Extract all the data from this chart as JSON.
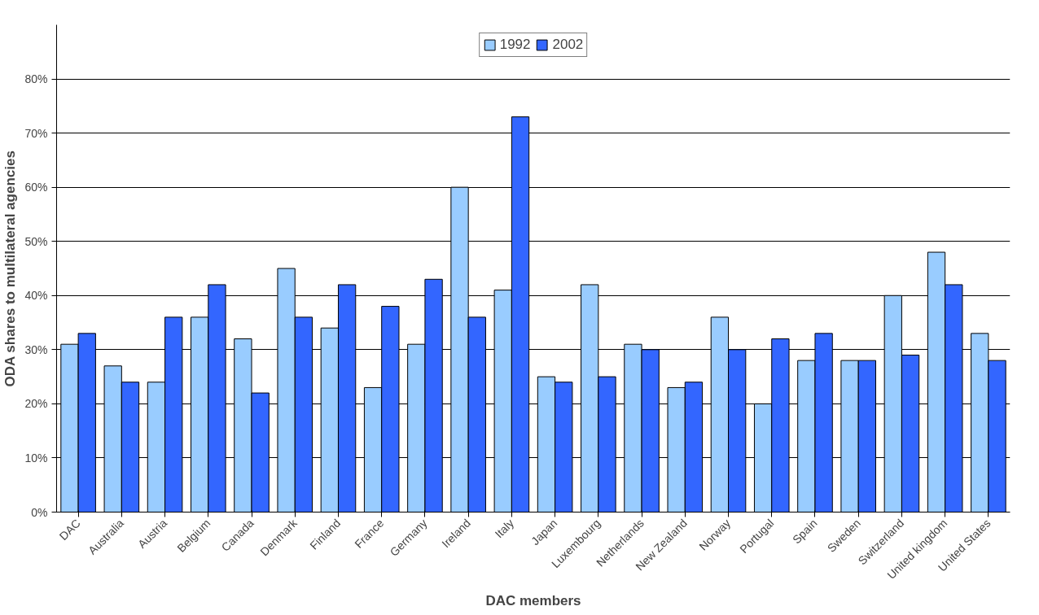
{
  "chart_data": {
    "type": "bar",
    "xlabel": "DAC members",
    "ylabel": "ODA shares to multilateral agencies",
    "categories": [
      "DAC",
      "Australia",
      "Austria",
      "Belgium",
      "Canada",
      "Denmark",
      "Finland",
      "France",
      "Germany",
      "Ireland",
      "Italy",
      "Japan",
      "Luxembourg",
      "Netherlands",
      "New Zealand",
      "Norway",
      "Portugal",
      "Spain",
      "Sweden",
      "Switzerland",
      "United kingdom",
      "United States"
    ],
    "series": [
      {
        "name": "1992",
        "color": "#99ccff",
        "values": [
          31,
          27,
          24,
          36,
          32,
          45,
          34,
          23,
          31,
          60,
          41,
          25,
          42,
          31,
          23,
          36,
          20,
          28,
          28,
          40,
          48,
          33
        ]
      },
      {
        "name": "2002",
        "color": "#3366ff",
        "values": [
          33,
          24,
          36,
          42,
          22,
          36,
          42,
          38,
          43,
          36,
          73,
          24,
          25,
          30,
          24,
          30,
          32,
          33,
          28,
          29,
          42,
          28
        ]
      }
    ],
    "ylim": [
      0,
      90
    ],
    "yticks": [
      {
        "value": 0,
        "label": "0%"
      },
      {
        "value": 10,
        "label": "10%"
      },
      {
        "value": 20,
        "label": "20%"
      },
      {
        "value": 30,
        "label": "30%"
      },
      {
        "value": 40,
        "label": "40%"
      },
      {
        "value": 50,
        "label": "50%"
      },
      {
        "value": 60,
        "label": "60%"
      },
      {
        "value": 70,
        "label": "70%"
      },
      {
        "value": 80,
        "label": "80%"
      }
    ],
    "grid": "y",
    "legend": "top"
  }
}
